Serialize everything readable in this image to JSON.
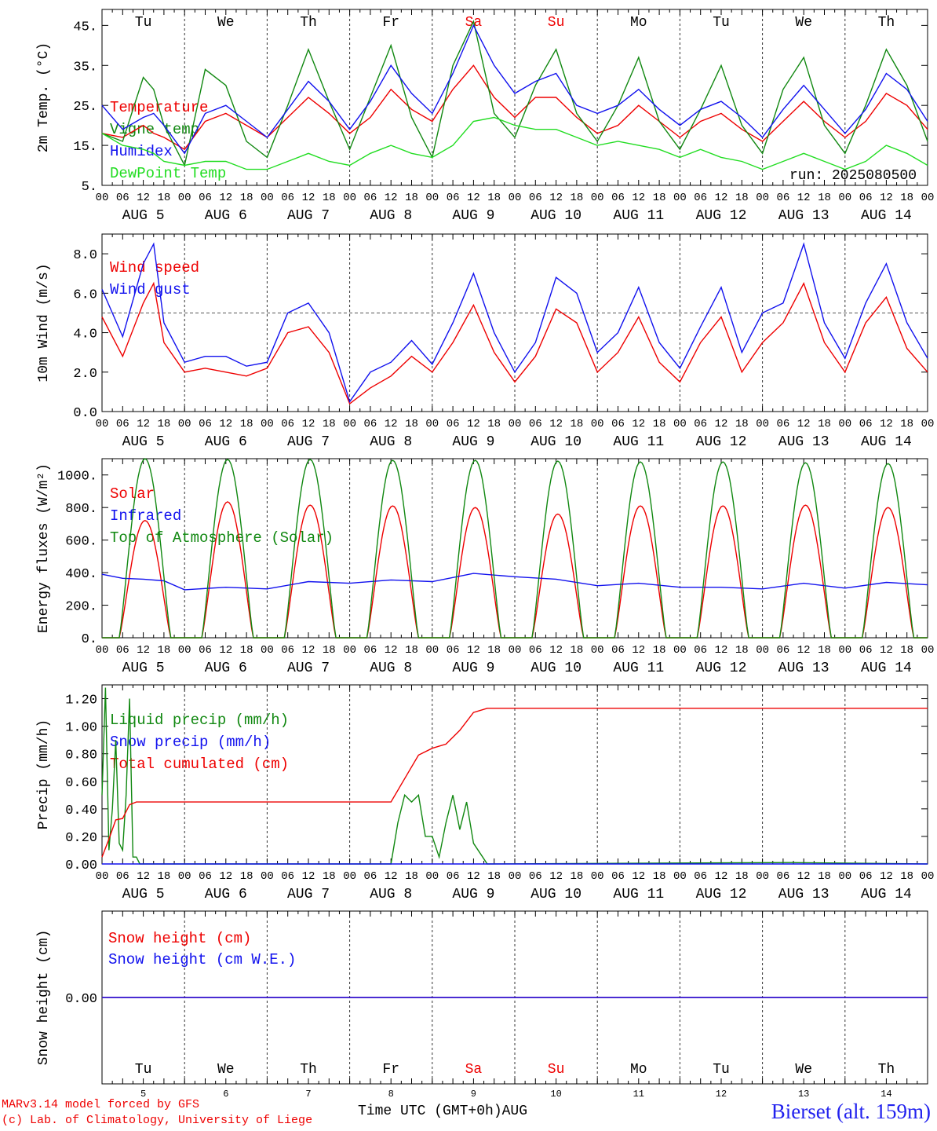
{
  "meta": {
    "model_line": "MARv3.14 model forced by GFS",
    "lab_line": "(c) Lab. of Climatology, University of Liege",
    "xlabel": "Time UTC (GMT+0h)AUG",
    "station": "Bierset (alt. 159m)",
    "run": "run: 2025080500"
  },
  "days": {
    "names": [
      "Tu",
      "We",
      "Th",
      "Fr",
      "Sa",
      "Su",
      "Mo",
      "Tu",
      "We",
      "Th"
    ],
    "weekend": [
      false,
      false,
      false,
      false,
      true,
      true,
      false,
      false,
      false,
      false
    ],
    "dates": [
      "AUG  5",
      "AUG  6",
      "AUG  7",
      "AUG  8",
      "AUG  9",
      "AUG 10",
      "AUG 11",
      "AUG 12",
      "AUG 13",
      "AUG 14"
    ],
    "numbers": [
      "5",
      "6",
      "7",
      "8",
      "9",
      "10",
      "11",
      "12",
      "13",
      "14"
    ],
    "hour_ticks": [
      "00",
      "06",
      "12",
      "18"
    ],
    "end_tick": "00"
  },
  "colors": {
    "red": "#ee0000",
    "green": "#118811",
    "blue": "#1111ee",
    "light_green": "#22dd22",
    "weekend": "#ee0000"
  },
  "chart_data": [
    {
      "type": "line",
      "ylabel": "2m Temp. (°C)",
      "ylim": [
        5,
        49
      ],
      "yticks": [
        5,
        15,
        25,
        35,
        45
      ],
      "ytick_labels": [
        "5.",
        "15.",
        "25.",
        "35.",
        "45."
      ],
      "x_hours": [
        0,
        6,
        12,
        15,
        18,
        24,
        30,
        36,
        42,
        48,
        54,
        60,
        66,
        72,
        78,
        84,
        90,
        96,
        102,
        108,
        114,
        120,
        126,
        132,
        138,
        144,
        150,
        156,
        162,
        168,
        174,
        180,
        186,
        192,
        198,
        204,
        210,
        216,
        222,
        228,
        234,
        240
      ],
      "series": [
        {
          "name": "Temperature",
          "color": "#ee0000",
          "values": [
            18,
            17,
            20,
            18,
            17,
            14,
            21,
            23,
            20,
            17,
            22,
            27,
            23,
            18,
            22,
            29,
            24,
            21,
            29,
            35,
            27,
            22,
            27,
            27,
            22,
            18,
            20,
            25,
            21,
            17,
            21,
            23,
            19,
            16,
            21,
            26,
            21,
            17,
            21,
            28,
            25,
            19
          ]
        },
        {
          "name": "Vigne temp",
          "color": "#118811",
          "values": [
            18,
            16,
            32,
            29,
            20,
            10,
            34,
            30,
            16,
            12,
            25,
            39,
            26,
            14,
            27,
            40,
            22,
            12,
            35,
            46,
            23,
            17,
            30,
            39,
            23,
            16,
            25,
            37,
            21,
            14,
            24,
            35,
            20,
            13,
            29,
            37,
            20,
            13,
            25,
            39,
            30,
            16
          ]
        },
        {
          "name": "Humidex",
          "color": "#1111ee",
          "values": [
            25,
            19,
            22,
            23,
            20,
            13,
            23,
            25,
            21,
            17,
            24,
            31,
            26,
            19,
            26,
            35,
            28,
            23,
            33,
            45,
            35,
            28,
            31,
            33,
            25,
            23,
            25,
            29,
            24,
            20,
            24,
            26,
            22,
            17,
            24,
            30,
            24,
            18,
            24,
            33,
            29,
            21
          ]
        },
        {
          "name": "DewPoint Temp",
          "color": "#22dd22",
          "values": [
            18,
            15,
            14,
            13,
            11,
            10,
            11,
            11,
            9,
            9,
            11,
            13,
            11,
            10,
            13,
            15,
            13,
            12,
            15,
            21,
            22,
            20,
            19,
            19,
            17,
            15,
            16,
            15,
            14,
            12,
            14,
            12,
            11,
            9,
            11,
            13,
            11,
            9,
            11,
            15,
            13,
            10
          ]
        }
      ]
    },
    {
      "type": "line",
      "ylabel": "10m Wind (m/s)",
      "ylim": [
        0,
        9
      ],
      "yticks": [
        0,
        2,
        4,
        6,
        8
      ],
      "ytick_labels": [
        "0.0",
        "2.0",
        "4.0",
        "6.0",
        "8.0"
      ],
      "reference_line": 5,
      "x_hours": [
        0,
        6,
        12,
        15,
        18,
        24,
        30,
        36,
        42,
        48,
        54,
        60,
        66,
        72,
        78,
        84,
        90,
        96,
        102,
        108,
        114,
        120,
        126,
        132,
        138,
        144,
        150,
        156,
        162,
        168,
        174,
        180,
        186,
        192,
        198,
        204,
        210,
        216,
        222,
        228,
        234,
        240
      ],
      "series": [
        {
          "name": "Wind speed",
          "color": "#ee0000",
          "values": [
            4.8,
            2.8,
            5.5,
            6.5,
            3.5,
            2.0,
            2.2,
            2.0,
            1.8,
            2.2,
            4.0,
            4.3,
            3.0,
            0.4,
            1.2,
            1.8,
            2.8,
            2.0,
            3.5,
            5.4,
            3.0,
            1.5,
            2.8,
            5.2,
            4.5,
            2.0,
            3.0,
            4.8,
            2.5,
            1.5,
            3.5,
            4.8,
            2.0,
            3.5,
            4.5,
            6.5,
            3.5,
            2.0,
            4.5,
            5.8,
            3.2,
            2.0
          ]
        },
        {
          "name": "Wind gust",
          "color": "#1111ee",
          "values": [
            6.2,
            3.8,
            7.5,
            8.5,
            4.5,
            2.5,
            2.8,
            2.8,
            2.3,
            2.5,
            5.0,
            5.5,
            4.0,
            0.5,
            2.0,
            2.5,
            3.6,
            2.4,
            4.5,
            7.0,
            4.0,
            2.0,
            3.5,
            6.8,
            6.0,
            3.0,
            4.0,
            6.3,
            3.5,
            2.2,
            4.3,
            6.3,
            3.0,
            5.0,
            5.5,
            8.5,
            4.5,
            2.7,
            5.5,
            7.5,
            4.5,
            2.7
          ]
        }
      ]
    },
    {
      "type": "line",
      "ylabel": "Energy fluxes (W/m²)",
      "ylim": [
        0,
        1100
      ],
      "yticks": [
        0,
        200,
        400,
        600,
        800,
        1000
      ],
      "ytick_labels": [
        "0.",
        "200.",
        "400.",
        "600.",
        "800.",
        "1000."
      ],
      "daily_peak_hour": 12.5,
      "daylight_half_width_h": 7.5,
      "series": [
        {
          "name": "Solar",
          "color": "#ee0000",
          "daily_peaks": [
            720,
            835,
            815,
            810,
            800,
            760,
            810,
            810,
            815,
            800
          ]
        },
        {
          "name": "Infrared",
          "color": "#1111ee",
          "x_hours": [
            0,
            6,
            12,
            18,
            24,
            36,
            48,
            60,
            72,
            84,
            96,
            108,
            120,
            132,
            144,
            156,
            168,
            180,
            192,
            204,
            216,
            228,
            240
          ],
          "values": [
            390,
            365,
            360,
            350,
            295,
            310,
            300,
            345,
            335,
            355,
            345,
            395,
            375,
            360,
            320,
            335,
            310,
            310,
            300,
            335,
            305,
            340,
            325
          ]
        },
        {
          "name": "Top of Atmosphere (Solar)",
          "color": "#118811",
          "daily_peaks": [
            1100,
            1095,
            1095,
            1090,
            1090,
            1085,
            1080,
            1080,
            1075,
            1070
          ]
        }
      ]
    },
    {
      "type": "line",
      "ylabel": "Precip (mm/h)",
      "ylim": [
        0,
        1.3
      ],
      "yticks": [
        0,
        0.2,
        0.4,
        0.6,
        0.8,
        1.0,
        1.2
      ],
      "ytick_labels": [
        "0.00",
        "0.20",
        "0.40",
        "0.60",
        "0.80",
        "1.00",
        "1.20"
      ],
      "series": [
        {
          "name": "Liquid precip (mm/h)",
          "color": "#118811",
          "x_hours": [
            0,
            1,
            2,
            3,
            4,
            5,
            6,
            7,
            8,
            9,
            10,
            11,
            12,
            13,
            24,
            84,
            86,
            88,
            90,
            92,
            94,
            96,
            98,
            100,
            102,
            104,
            106,
            108,
            112,
            200,
            240
          ],
          "values": [
            0.5,
            1.28,
            0.1,
            0.4,
            0.9,
            0.15,
            0.1,
            0.5,
            1.2,
            0.05,
            0.05,
            0,
            0,
            0,
            0,
            0,
            0.3,
            0.5,
            0.45,
            0.5,
            0.2,
            0.2,
            0.05,
            0.3,
            0.5,
            0.25,
            0.45,
            0.15,
            0,
            0.01,
            0
          ]
        },
        {
          "name": "Snow precip (mm/h)",
          "color": "#1111ee",
          "x_hours": [
            0,
            240
          ],
          "values": [
            0,
            0
          ]
        },
        {
          "name": "Total cumulated (cm)",
          "color": "#ee0000",
          "x_hours": [
            0,
            2,
            4,
            6,
            8,
            10,
            12,
            84,
            88,
            92,
            96,
            100,
            104,
            108,
            112,
            240
          ],
          "values": [
            0.05,
            0.18,
            0.32,
            0.33,
            0.43,
            0.45,
            0.45,
            0.45,
            0.62,
            0.79,
            0.84,
            0.87,
            0.97,
            1.1,
            1.13,
            1.13
          ]
        }
      ]
    },
    {
      "type": "line",
      "ylabel": "Snow height (cm)",
      "yticks": [
        0
      ],
      "ytick_labels": [
        "0.00"
      ],
      "series": [
        {
          "name": "Snow height (cm)",
          "color": "#ee0000",
          "x_hours": [
            0,
            240
          ],
          "values": [
            0,
            0
          ]
        },
        {
          "name": "Snow height (cm W.E.)",
          "color": "#1111ee",
          "x_hours": [
            0,
            240
          ],
          "values": [
            0,
            0
          ]
        }
      ]
    }
  ]
}
